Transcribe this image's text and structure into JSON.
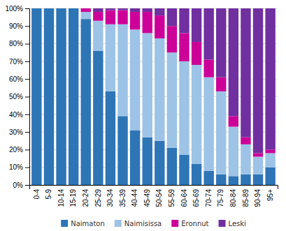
{
  "chart_data": {
    "type": "bar",
    "stacked": true,
    "categories": [
      "0-4",
      "5-9",
      "10-14",
      "15-19",
      "20-24",
      "25-29",
      "30-34",
      "35-39",
      "40-44",
      "45-49",
      "50-54",
      "55-59",
      "60-64",
      "65-69",
      "70-74",
      "75-79",
      "80-84",
      "85-89",
      "90-94",
      "95+"
    ],
    "series": [
      {
        "name": "Naimaton",
        "color": "#2E75B6",
        "values": [
          100,
          100,
          100,
          100,
          94,
          76,
          53,
          39,
          31,
          27,
          25,
          21,
          17,
          12,
          8,
          6,
          5,
          6,
          6,
          10
        ]
      },
      {
        "name": "Naimisissa",
        "color": "#9DC3E6",
        "values": [
          0,
          0,
          0,
          0,
          4,
          17,
          38,
          52,
          57,
          59,
          58,
          54,
          53,
          56,
          53,
          47,
          28,
          17,
          10,
          8
        ]
      },
      {
        "name": "Eronnut",
        "color": "#CC0099",
        "values": [
          0,
          0,
          0,
          0,
          2,
          5,
          8,
          8,
          10,
          12,
          13,
          15,
          16,
          13,
          10,
          8,
          6,
          4,
          2,
          2
        ]
      },
      {
        "name": "Leski",
        "color": "#7030A0",
        "values": [
          0,
          0,
          0,
          0,
          0,
          2,
          1,
          1,
          2,
          2,
          4,
          10,
          14,
          19,
          29,
          39,
          61,
          73,
          82,
          80
        ]
      }
    ],
    "ylim": [
      0,
      100
    ],
    "yticks": [
      {
        "value": 0,
        "label": "0%"
      },
      {
        "value": 10,
        "label": "10%"
      },
      {
        "value": 20,
        "label": "20%"
      },
      {
        "value": 30,
        "label": "30%"
      },
      {
        "value": 40,
        "label": "40%"
      },
      {
        "value": 50,
        "label": "50%"
      },
      {
        "value": 60,
        "label": "60%"
      },
      {
        "value": 70,
        "label": "70%"
      },
      {
        "value": 80,
        "label": "80%"
      },
      {
        "value": 90,
        "label": "90%"
      },
      {
        "value": 100,
        "label": "100%"
      }
    ],
    "grid": true,
    "legend": "bottom"
  }
}
